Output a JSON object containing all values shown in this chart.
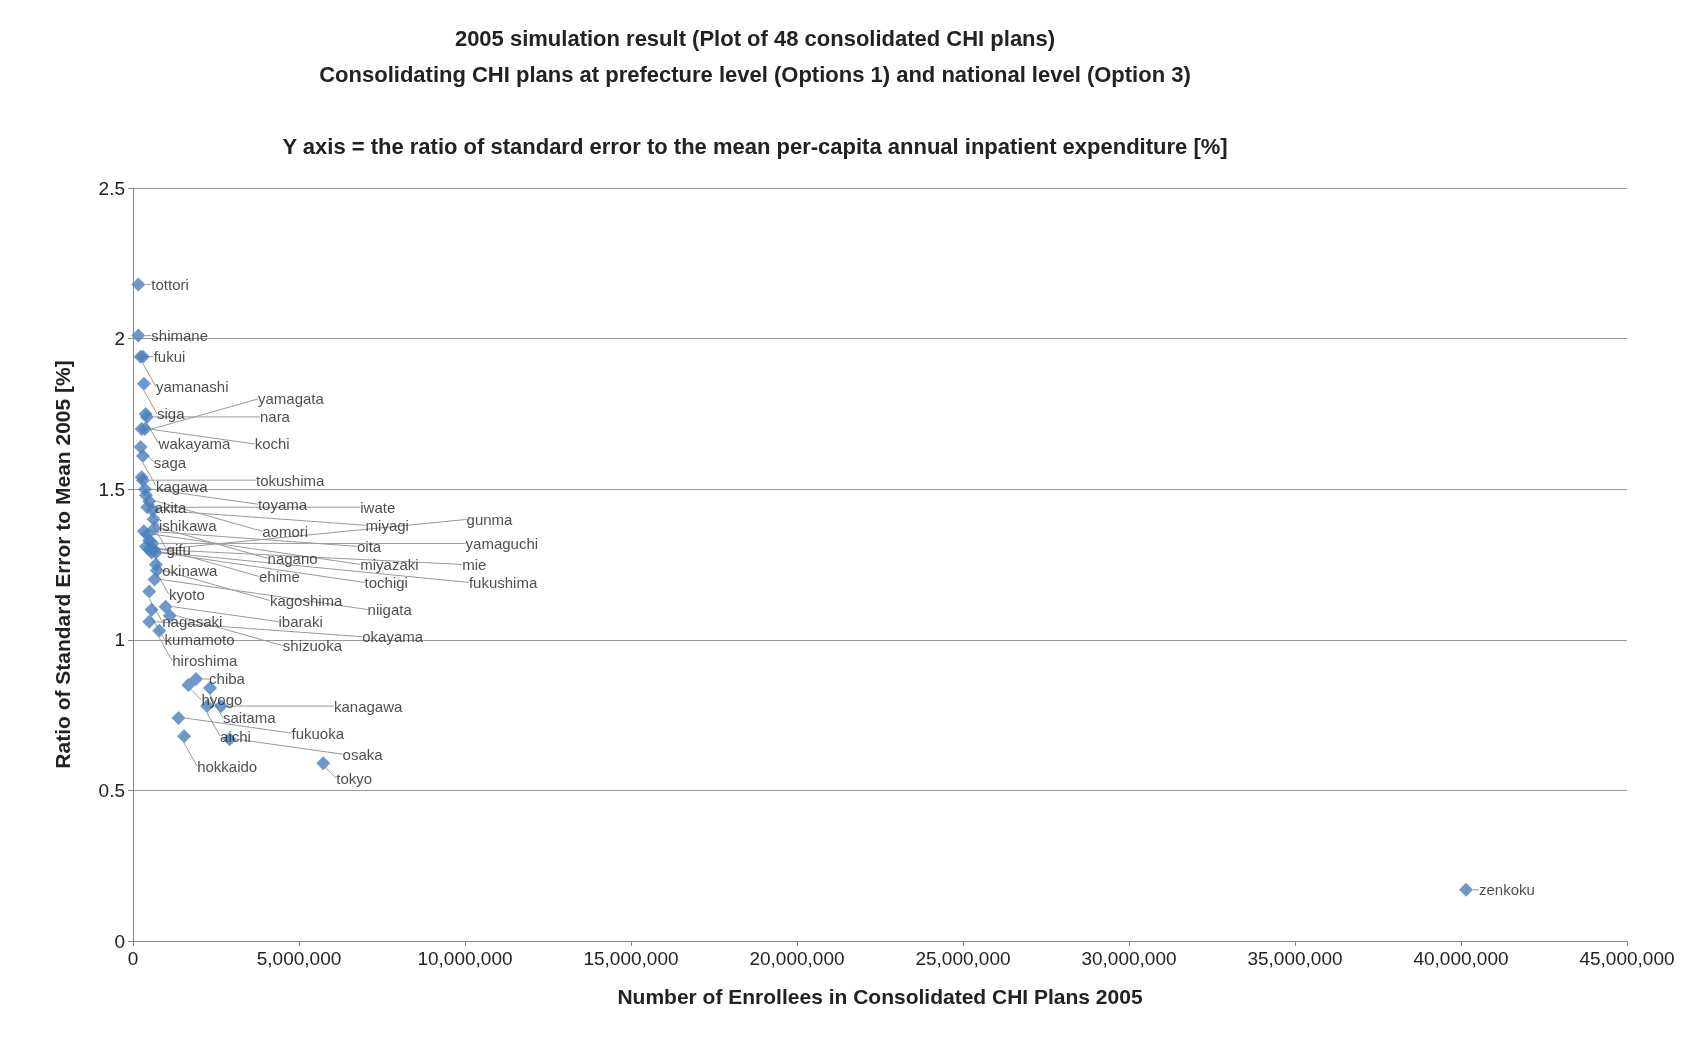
{
  "chart_data": {
    "type": "scatter",
    "title": "2005 simulation result (Plot of 48 consolidated CHI plans)",
    "subtitle": "Consolidating CHI plans at prefecture level (Options 1) and national level (Option 3)",
    "annotations": [
      "Y axis = the ratio of standard error to the mean per-capita annual inpatient expenditure [%]"
    ],
    "xlabel": "Number of Enrollees in Consolidated CHI Plans 2005",
    "ylabel": "Ratio of Standard Error to Mean 2005 [%]",
    "xlim": [
      0,
      45000000
    ],
    "ylim": [
      0,
      2.5
    ],
    "xticks": [
      0,
      {
        "value": 5000000,
        "label": "5,000,000"
      },
      {
        "value": 10000000,
        "label": "10,000,000"
      },
      {
        "value": 15000000,
        "label": "15,000,000"
      },
      {
        "value": 20000000,
        "label": "20,000,000"
      },
      {
        "value": 25000000,
        "label": "25,000,000"
      },
      {
        "value": 30000000,
        "label": "30,000,000"
      },
      {
        "value": 35000000,
        "label": "35,000,000"
      },
      {
        "value": 40000000,
        "label": "40,000,000"
      },
      {
        "value": 45000000,
        "label": "45,000,000"
      }
    ],
    "yticks": [
      0,
      0.5,
      1,
      1.5,
      2,
      2.5
    ],
    "grid": "y",
    "marker": "diamond",
    "series": [
      {
        "color": "#4a7ebb",
        "x": [
          160000,
          160000,
          230000,
          300000,
          330000,
          380000,
          420000,
          260000,
          360000,
          230000,
          300000,
          260000,
          300000,
          360000,
          390000,
          490000,
          430000,
          590000,
          620000,
          650000,
          330000,
          430000,
          490000,
          590000,
          390000,
          490000,
          620000,
          560000,
          690000,
          690000,
          720000,
          650000,
          490000,
          980000,
          560000,
          1110000,
          490000,
          790000,
          1900000,
          1670000,
          2320000,
          2230000,
          2650000,
          1370000,
          1540000,
          2910000,
          5730000,
          40150000
        ],
        "values": [
          2.18,
          2.01,
          1.94,
          1.94,
          1.85,
          1.75,
          1.74,
          1.7,
          1.7,
          1.64,
          1.61,
          1.54,
          1.53,
          1.5,
          1.48,
          1.46,
          1.44,
          1.43,
          1.4,
          1.37,
          1.36,
          1.35,
          1.33,
          1.32,
          1.31,
          1.3,
          1.3,
          1.29,
          1.29,
          1.25,
          1.23,
          1.2,
          1.16,
          1.11,
          1.1,
          1.08,
          1.06,
          1.03,
          0.87,
          0.85,
          0.84,
          0.78,
          0.78,
          0.74,
          0.68,
          0.67,
          0.59,
          0.17
        ],
        "value_labels": [
          "tottori",
          "shimane",
          "fukui",
          "yamanashi",
          "siga",
          "wakayama",
          "nara",
          "kochi",
          "yamagata",
          "saga",
          "kagawa",
          "akita",
          "tokushima",
          "toyama",
          "ishikawa",
          "aomori",
          "iwate",
          "miyagi",
          "gifu",
          "nagano",
          "oita",
          "miyazaki",
          "okinawa",
          "yamaguchi",
          "ehime",
          "mie",
          "gunma",
          "tochigi",
          "fukushima",
          "kyoto",
          "kagoshima",
          "niigata",
          "nagasaki",
          "ibaraki",
          "kumamoto",
          "shizuoka",
          "okayama",
          "hiroshima",
          "chiba",
          "hyogo",
          "saitama",
          "aichi",
          "kanagawa",
          "fukuoka",
          "hokkaido",
          "osaka",
          "tokyo",
          "zenkoku"
        ]
      }
    ]
  }
}
